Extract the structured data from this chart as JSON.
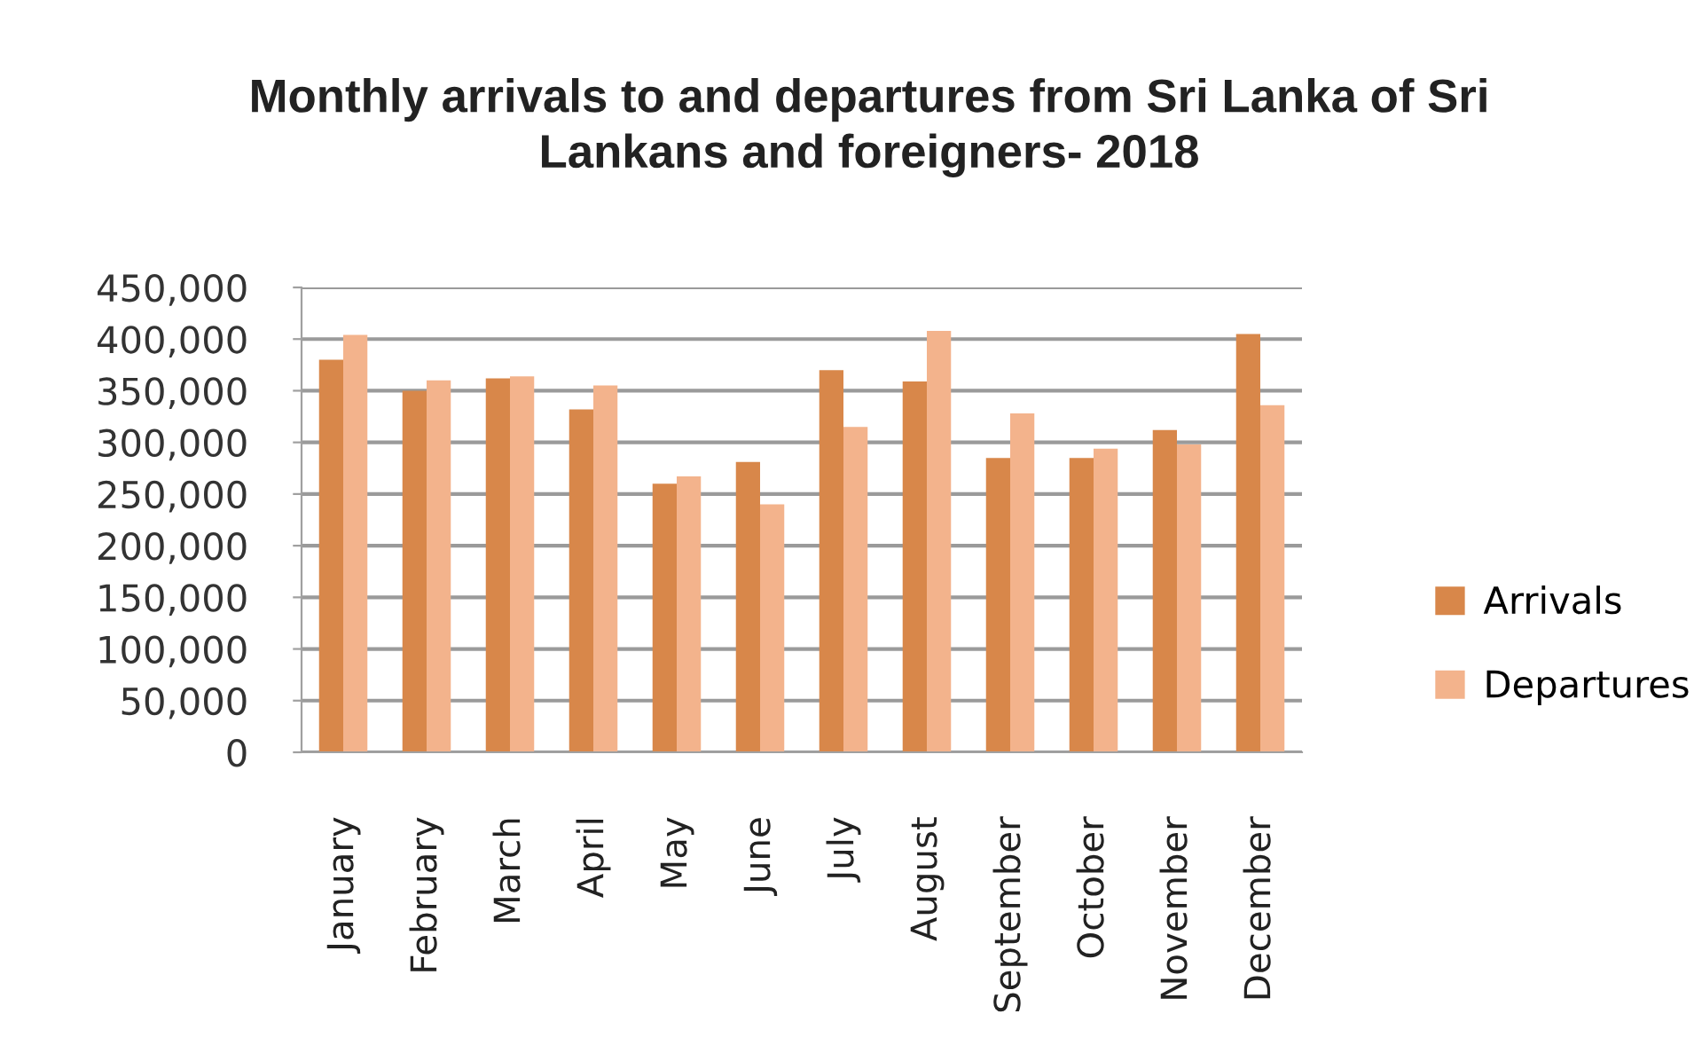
{
  "chart_data": {
    "type": "bar",
    "title": "Monthly arrivals to and departures from Sri Lanka of Sri Lankans and foreigners- 2018",
    "categories": [
      "January",
      "February",
      "March",
      "April",
      "May",
      "June",
      "July",
      "August",
      "September",
      "October",
      "November",
      "December"
    ],
    "series": [
      {
        "name": "Arrivals",
        "color": "#d8874a",
        "values": [
          380000,
          350000,
          362000,
          332000,
          260000,
          281000,
          370000,
          359000,
          285000,
          285000,
          312000,
          405000
        ]
      },
      {
        "name": "Departures",
        "color": "#f3b38c",
        "values": [
          404000,
          360000,
          364000,
          355000,
          267000,
          240000,
          315000,
          408000,
          328000,
          294000,
          298000,
          336000
        ]
      }
    ],
    "ylim": [
      0,
      450000
    ],
    "yticks": [
      {
        "value": 0,
        "label": "0"
      },
      {
        "value": 50000,
        "label": "50,000"
      },
      {
        "value": 100000,
        "label": "100,000"
      },
      {
        "value": 150000,
        "label": "150,000"
      },
      {
        "value": 200000,
        "label": "200,000"
      },
      {
        "value": 250000,
        "label": "250,000"
      },
      {
        "value": 300000,
        "label": "300,000"
      },
      {
        "value": 350000,
        "label": "350,000"
      },
      {
        "value": 400000,
        "label": "400,000"
      },
      {
        "value": 450000,
        "label": "450,000"
      }
    ],
    "grid": "y",
    "legend": "right"
  }
}
